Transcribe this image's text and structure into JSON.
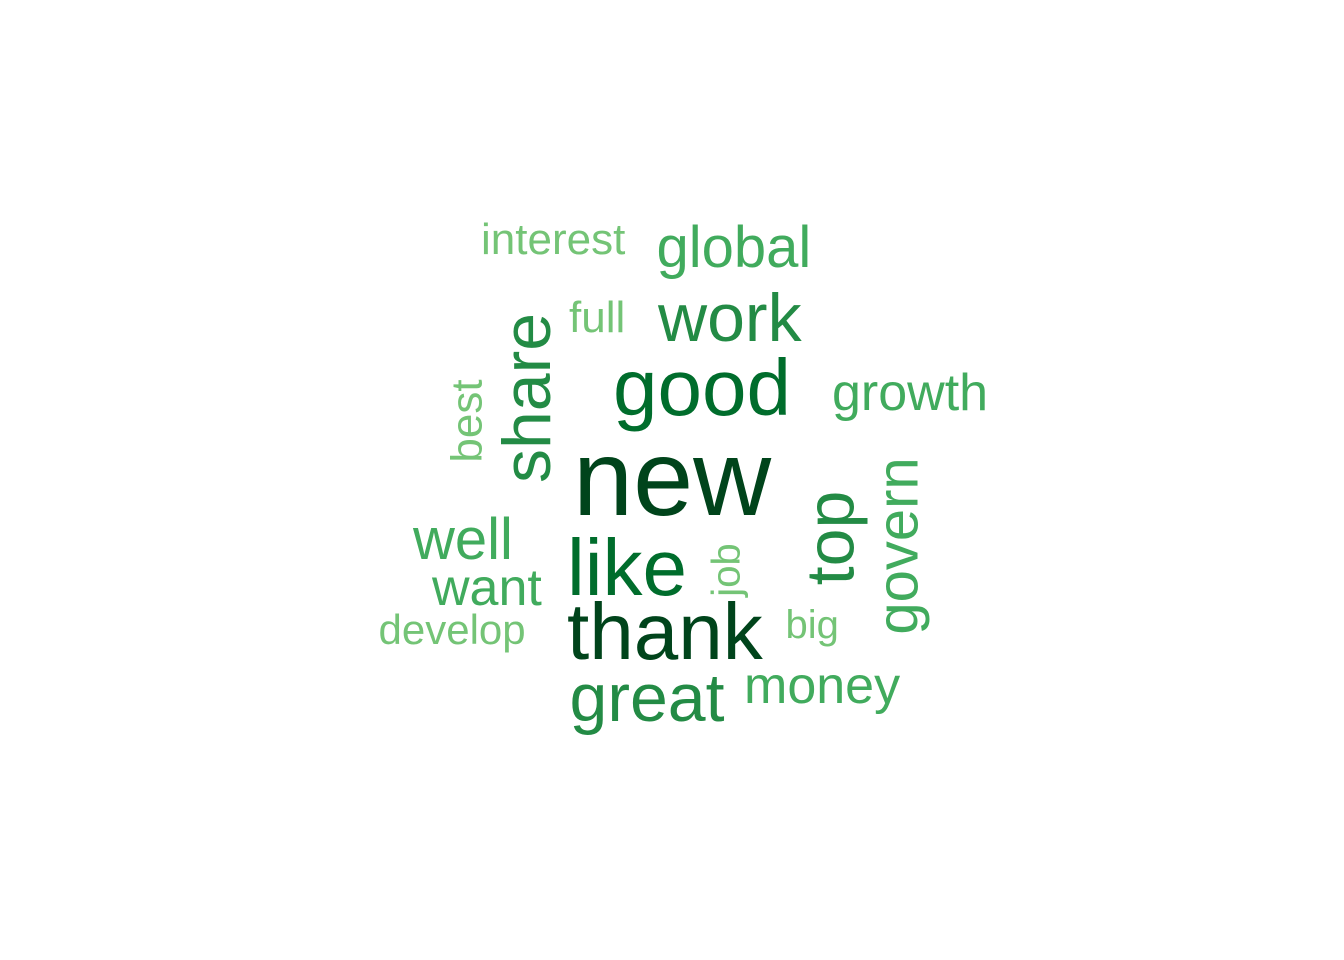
{
  "colors": {
    "darkest": "#00441b",
    "dark": "#006d2c",
    "mid_dark": "#238b45",
    "mid": "#41ab5d",
    "light": "#74c476"
  },
  "words": [
    {
      "key": "new",
      "text": "new",
      "color": "#00441b"
    },
    {
      "key": "thank",
      "text": "thank",
      "color": "#00441b"
    },
    {
      "key": "good",
      "text": "good",
      "color": "#006d2c"
    },
    {
      "key": "like",
      "text": "like",
      "color": "#006d2c"
    },
    {
      "key": "share",
      "text": "share",
      "color": "#238b45"
    },
    {
      "key": "work",
      "text": "work",
      "color": "#238b45"
    },
    {
      "key": "top",
      "text": "top",
      "color": "#238b45"
    },
    {
      "key": "great",
      "text": "great",
      "color": "#238b45"
    },
    {
      "key": "global",
      "text": "global",
      "color": "#41ab5d"
    },
    {
      "key": "govern",
      "text": "govern",
      "color": "#41ab5d"
    },
    {
      "key": "growth",
      "text": "growth",
      "color": "#41ab5d"
    },
    {
      "key": "well",
      "text": "well",
      "color": "#41ab5d"
    },
    {
      "key": "want",
      "text": "want",
      "color": "#41ab5d"
    },
    {
      "key": "money",
      "text": "money",
      "color": "#41ab5d"
    },
    {
      "key": "interest",
      "text": "interest",
      "color": "#74c476"
    },
    {
      "key": "full",
      "text": "full",
      "color": "#74c476"
    },
    {
      "key": "best",
      "text": "best",
      "color": "#74c476"
    },
    {
      "key": "job",
      "text": "job",
      "color": "#74c476"
    },
    {
      "key": "develop",
      "text": "develop",
      "color": "#74c476"
    },
    {
      "key": "big",
      "text": "big",
      "color": "#74c476"
    }
  ]
}
